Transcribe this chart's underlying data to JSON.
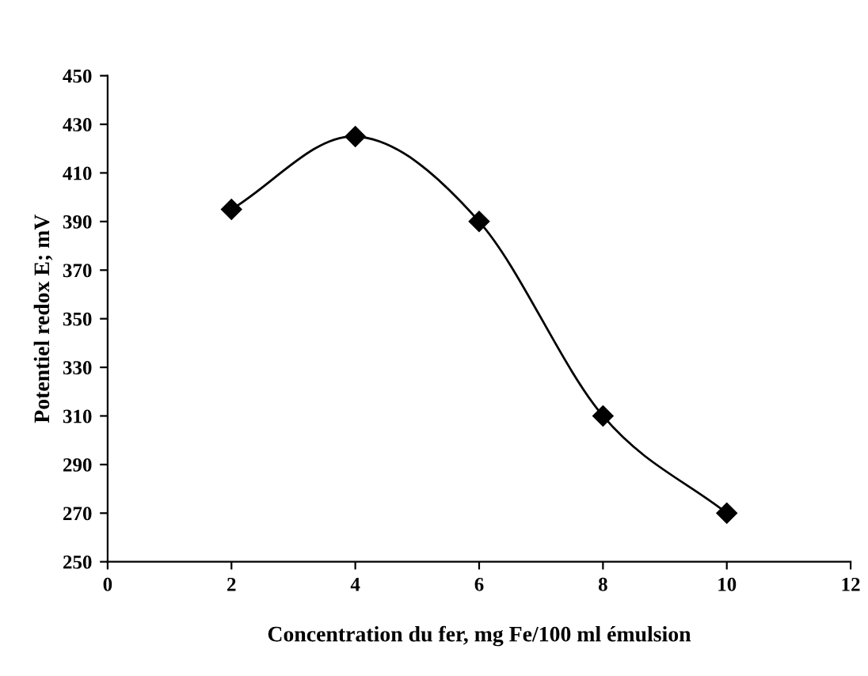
{
  "chart_data": {
    "type": "line",
    "xlabel": "Concentration du fer, mg Fe/100 ml émulsion",
    "ylabel": "Potentiel redox E; mV",
    "x": [
      2,
      4,
      6,
      8,
      10
    ],
    "series": [
      {
        "color": "#000000",
        "values": [
          395,
          425,
          390,
          310,
          270
        ]
      }
    ],
    "xlim": [
      0,
      12
    ],
    "xticks": [
      0,
      2,
      4,
      6,
      8,
      10,
      12
    ],
    "ylim": [
      250,
      450
    ],
    "yticks": [
      250,
      270,
      290,
      310,
      330,
      350,
      370,
      390,
      410,
      430,
      450
    ],
    "marker": "diamond",
    "line_style": "solid",
    "grid": false,
    "legend": false
  }
}
